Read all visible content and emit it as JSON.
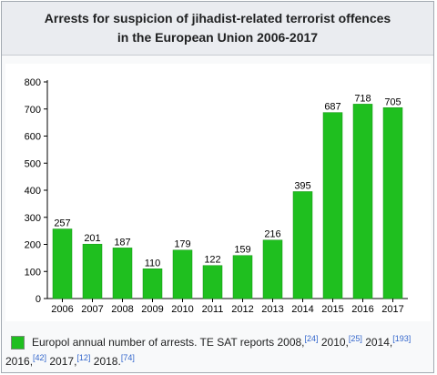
{
  "title_line1": "Arrests for suspicion of jihadist-related terrorist offences",
  "title_line2": "in the European Union 2006-2017",
  "legend": {
    "text_a": "Europol annual number of arrests. TE SAT reports 2008,",
    "ref_a": "[24]",
    "text_b": " 2010,",
    "ref_b": "[25]",
    "text_c": " 2014,",
    "ref_c": "[193]",
    "text_d": " 2016,",
    "ref_d": "[42]",
    "text_e": " 2017,",
    "ref_e": "[12]",
    "text_f": " 2018.",
    "ref_f": "[74]"
  },
  "colors": {
    "bar": "#1fbf1f",
    "bar_edge": "#179517"
  },
  "chart_data": {
    "type": "bar",
    "title": "Arrests for suspicion of jihadist-related terrorist offences in the European Union 2006-2017",
    "categories": [
      "2006",
      "2007",
      "2008",
      "2009",
      "2010",
      "2011",
      "2012",
      "2013",
      "2014",
      "2015",
      "2016",
      "2017"
    ],
    "values": [
      257,
      201,
      187,
      110,
      179,
      122,
      159,
      216,
      395,
      687,
      718,
      705
    ],
    "series": [
      {
        "name": "Europol annual number of arrests",
        "values": [
          257,
          201,
          187,
          110,
          179,
          122,
          159,
          216,
          395,
          687,
          718,
          705
        ]
      }
    ],
    "yticks": [
      0,
      100,
      200,
      300,
      400,
      500,
      600,
      700,
      800
    ],
    "ylim": [
      0,
      800
    ],
    "grid": false,
    "legend_position": "bottom",
    "data_labels": true
  }
}
